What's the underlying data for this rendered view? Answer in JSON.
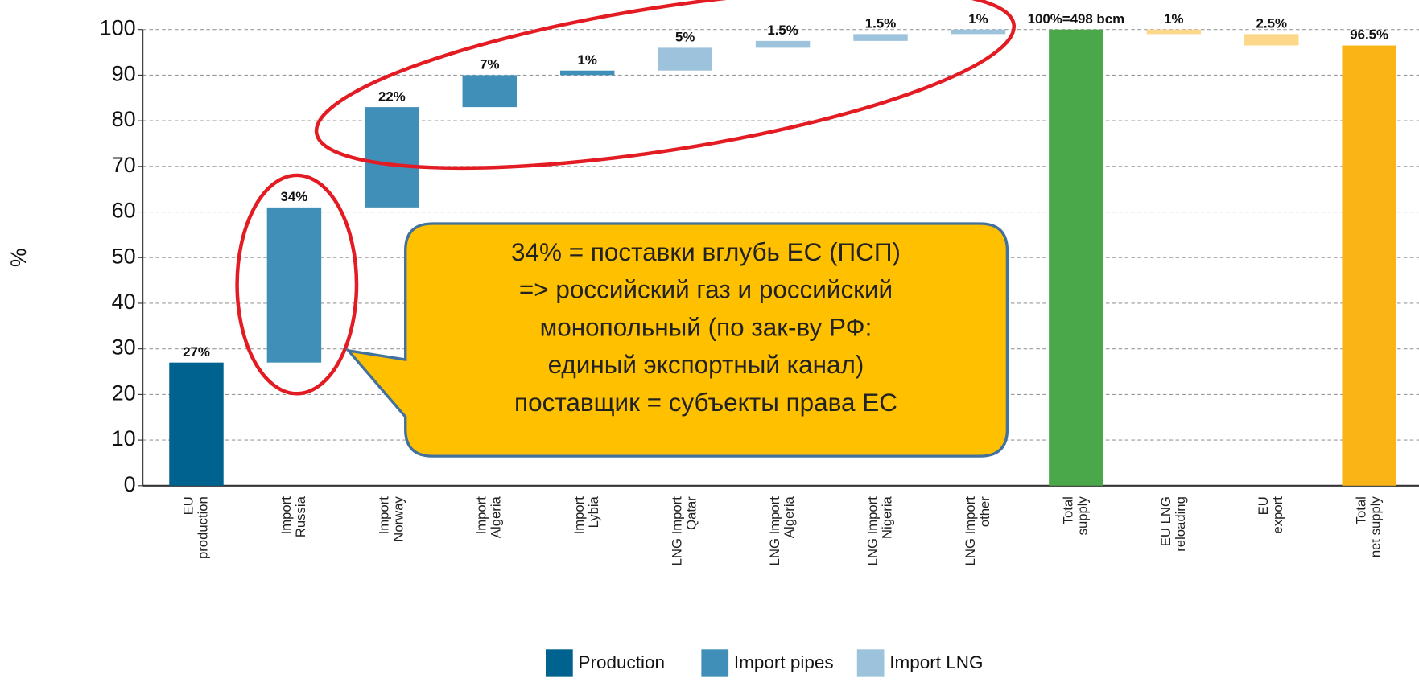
{
  "chart_data": {
    "type": "waterfall",
    "y_label": "%",
    "categories": [
      [
        "EU",
        "production"
      ],
      [
        "Import",
        "Russia"
      ],
      [
        "Import",
        "Norway"
      ],
      [
        "Import",
        "Algeria"
      ],
      [
        "Import",
        "Lybia"
      ],
      [
        "LNG Import",
        "Qatar"
      ],
      [
        "LNG Import",
        "Algeria"
      ],
      [
        "LNG Import",
        "Nigeria"
      ],
      [
        "LNG Import",
        "other"
      ],
      [
        "Total",
        "supply"
      ],
      [
        "EU LNG",
        "reloading"
      ],
      [
        "EU",
        "export"
      ],
      [
        "Total",
        "net supply"
      ]
    ],
    "values": [
      27,
      34,
      22,
      7,
      1,
      5,
      1.5,
      1.5,
      1,
      100,
      1,
      2.5,
      96.5
    ],
    "value_labels": [
      "27%",
      "34%",
      "22%",
      "7%",
      "1%",
      "5%",
      "1.5%",
      "1.5%",
      "1%",
      "100%=498 bcm",
      "1%",
      "2.5%",
      "96.5%"
    ],
    "measure": [
      "absolute",
      "relative",
      "relative",
      "relative",
      "relative",
      "relative",
      "relative",
      "relative",
      "relative",
      "total",
      "decrease",
      "decrease",
      "total"
    ],
    "colors": [
      "#00628f",
      "#3f8fb8",
      "#3f8fb8",
      "#3f8fb8",
      "#3f8fb8",
      "#9dc3dc",
      "#9dc3dc",
      "#9dc3dc",
      "#9dc3dc",
      "#4aa84a",
      "#fdd78a",
      "#fdd78a",
      "#fbb416"
    ],
    "legend": [
      {
        "name": "Production",
        "color": "#00628f"
      },
      {
        "name": "Import pipes",
        "color": "#3f8fb8"
      },
      {
        "name": "Import LNG",
        "color": "#9dc3dc"
      }
    ],
    "ylim": [
      0,
      100
    ],
    "yticks": [
      0,
      10,
      20,
      30,
      40,
      50,
      60,
      70,
      80,
      90,
      100
    ],
    "grid": true,
    "annotation": [
      "34% = поставки вглубь ЕС (ПСП)",
      "=> российский газ и российский",
      "монопольный (по зак-ву РФ:",
      "единый экспортный канал)",
      "поставщик = субъекты права ЕС"
    ]
  }
}
